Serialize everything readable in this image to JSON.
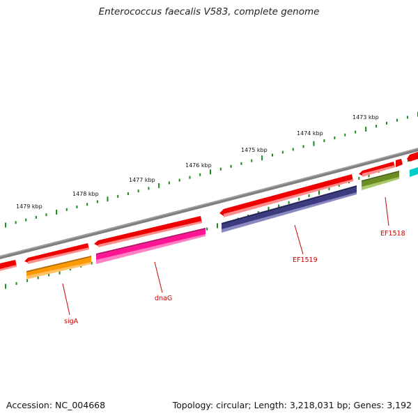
{
  "header": {
    "title": "Enterococcus faecalis V583, complete genome"
  },
  "footer": {
    "accession": "Accession: NC_004668",
    "summary": "Topology: circular; Length: 3,218,031 bp; Genes: 3,192"
  },
  "scale_labels": [
    {
      "text": "1473 kbp"
    },
    {
      "text": "1474 kbp"
    },
    {
      "text": "1475 kbp"
    },
    {
      "text": "1476 kbp"
    },
    {
      "text": "1477 kbp"
    },
    {
      "text": "1478 kbp"
    },
    {
      "text": "1479 kbp"
    }
  ],
  "gene_labels": [
    {
      "text": "sigA"
    },
    {
      "text": "dnaG"
    },
    {
      "text": "EF1519"
    },
    {
      "text": "EF1518"
    }
  ],
  "colors": {
    "backbone": "#808080",
    "tick": "#1a8a1a",
    "cds_strand": "#ee0000",
    "gene_sigA": "#ff9900",
    "gene_dnaG": "#ff1493",
    "gene_EF1519": "#3d3b80",
    "gene_EF1518": "#6b8e23",
    "gene_next": "#00cccc",
    "label": "#cc0000"
  }
}
